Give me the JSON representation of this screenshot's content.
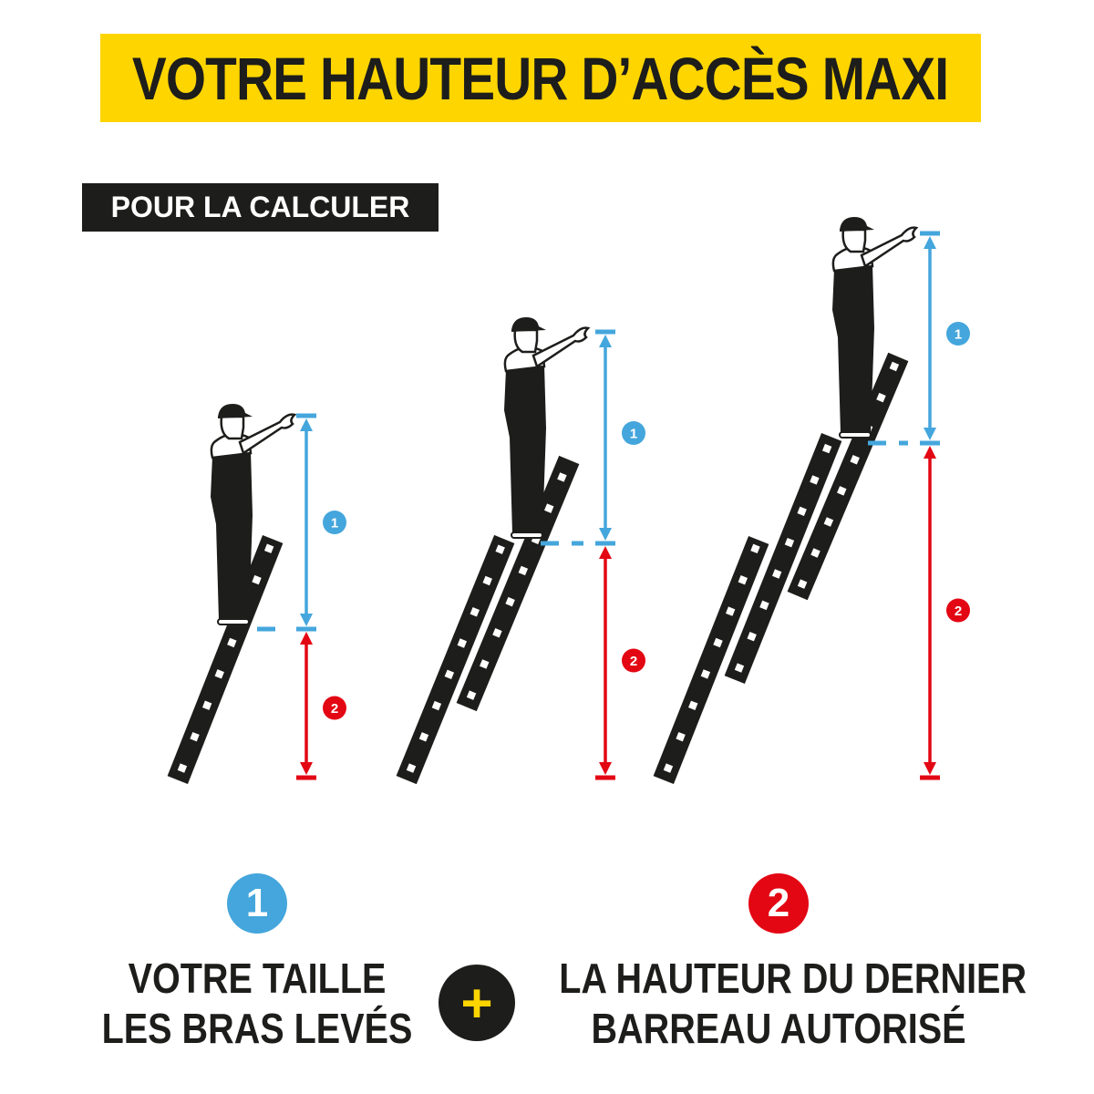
{
  "title": "VOTRE HAUTEUR D’ACCÈS MAXI",
  "subtitle": "POUR LA CALCULER",
  "colors": {
    "yellow": "#FFD500",
    "blue": "#44A6DC",
    "red": "#E30613",
    "black": "#1d1d1b"
  },
  "markers": {
    "one": "1",
    "two": "2"
  },
  "legend": {
    "item1": {
      "number": "1",
      "line1": "VOTRE TAILLE",
      "line2": "LES BRAS LEVÉS"
    },
    "operator": "+",
    "item2": {
      "number": "2",
      "line1": "LA HAUTEUR DU DERNIER",
      "line2": "BARREAU AUTORISÉ"
    }
  }
}
